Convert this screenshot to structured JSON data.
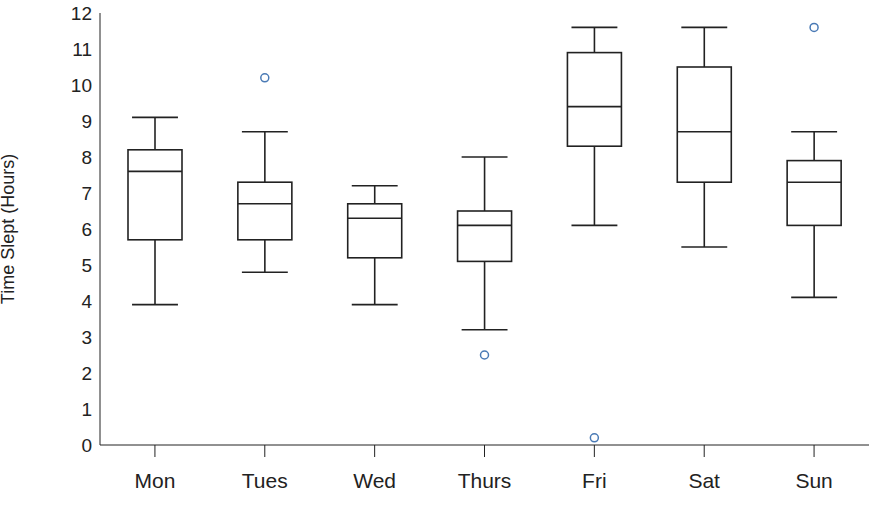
{
  "chart_data": {
    "type": "box",
    "y_label": "Time Slept (Hours)",
    "categories": [
      "Mon",
      "Tues",
      "Wed",
      "Thurs",
      "Fri",
      "Sat",
      "Sun"
    ],
    "stats": {
      "min": [
        3.9,
        4.8,
        3.9,
        3.2,
        6.1,
        5.5,
        4.1
      ],
      "q1": [
        5.7,
        5.7,
        5.2,
        5.1,
        8.3,
        7.3,
        6.1
      ],
      "median": [
        7.6,
        6.7,
        6.3,
        6.1,
        9.4,
        8.7,
        7.3
      ],
      "q3": [
        8.2,
        7.3,
        6.7,
        6.5,
        10.9,
        10.5,
        7.9
      ],
      "max": [
        9.1,
        8.7,
        7.2,
        8.0,
        11.6,
        11.6,
        8.7
      ]
    },
    "color": "#222222",
    "outliers": {
      "values": [
        [],
        [
          10.2
        ],
        [],
        [
          2.5
        ],
        [
          0.2
        ],
        [],
        [
          11.6
        ]
      ],
      "color": "#4a7ab5",
      "marker": "circle"
    },
    "ylim": [
      0,
      12
    ],
    "yticks": [
      0,
      1,
      2,
      3,
      4,
      5,
      6,
      7,
      8,
      9,
      10,
      11,
      12
    ],
    "grid": false
  }
}
